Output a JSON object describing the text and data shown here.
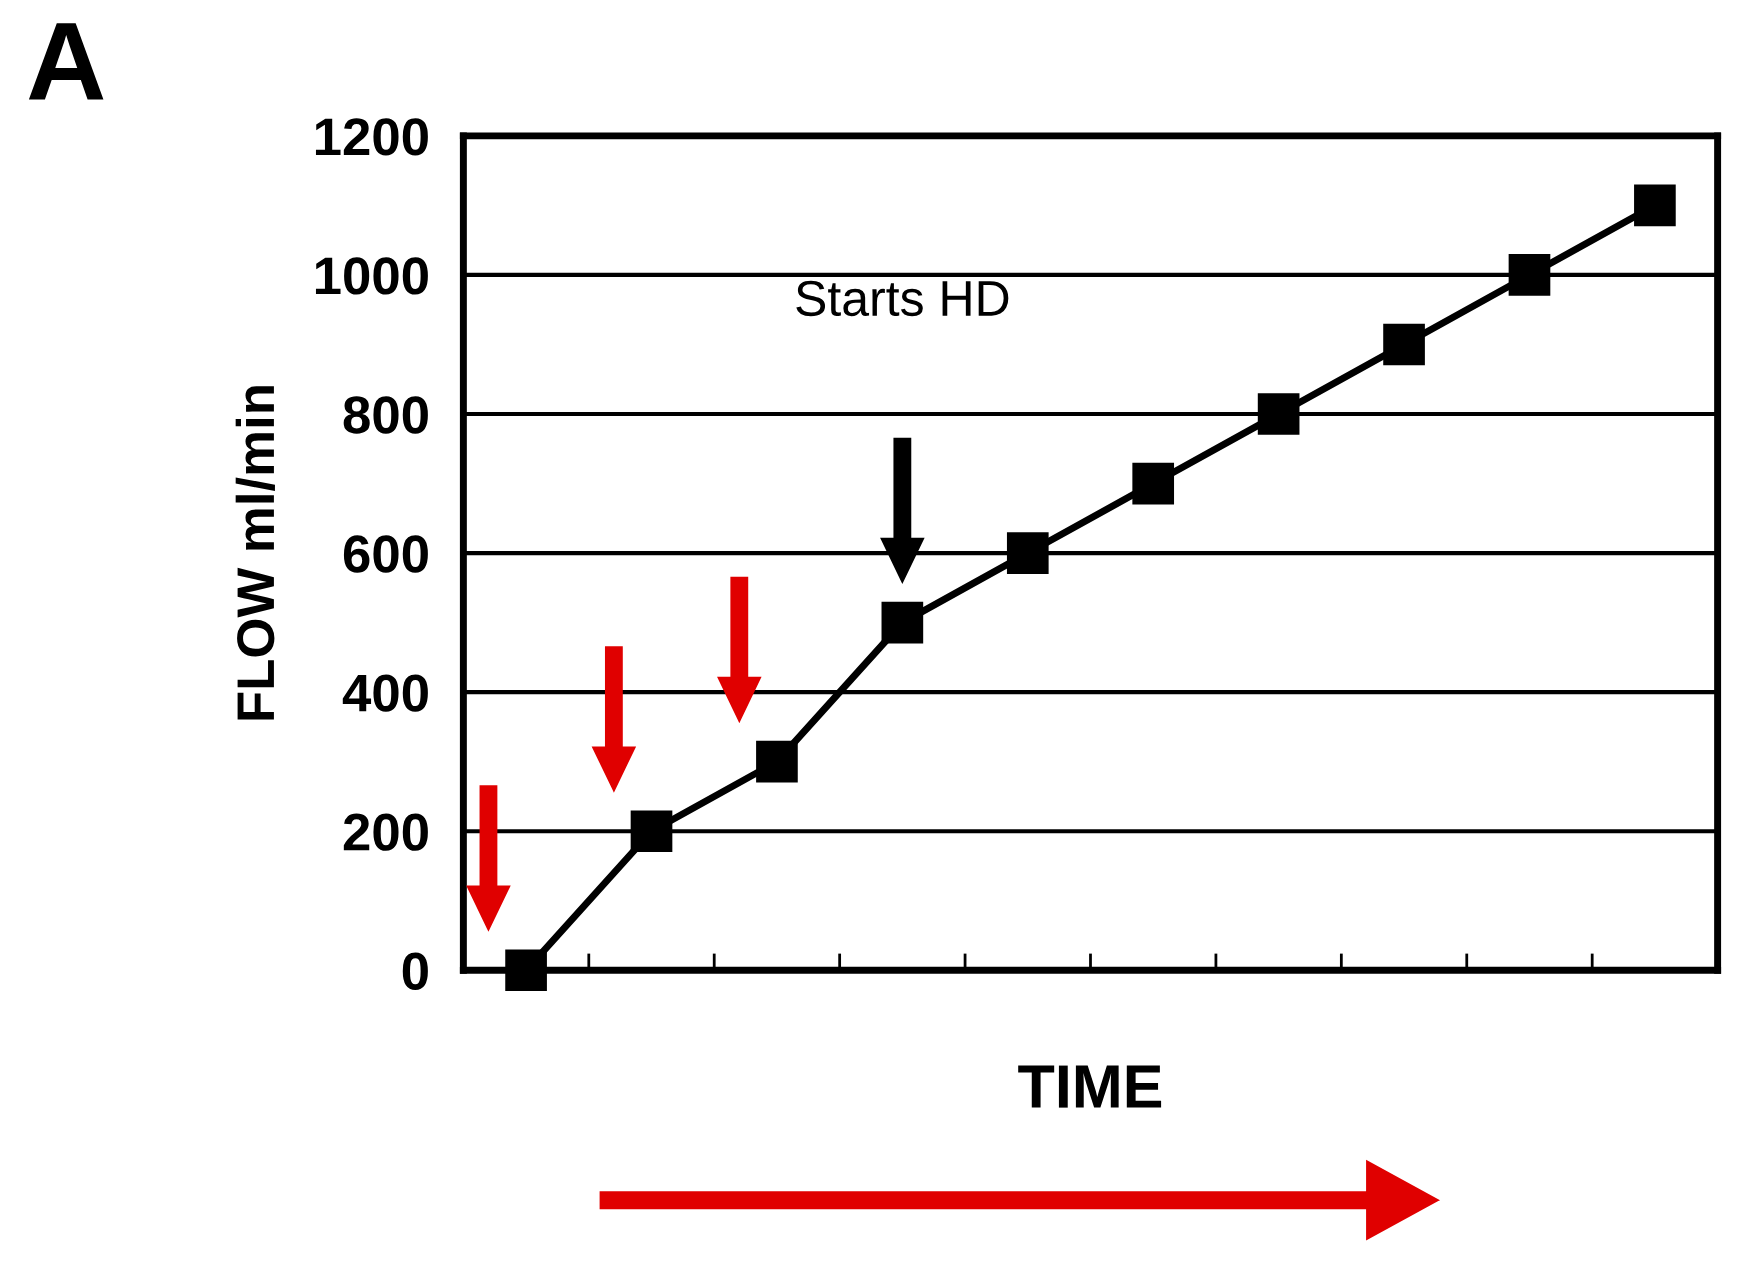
{
  "chart_data": {
    "type": "line",
    "xlabel": "TIME",
    "ylabel": "FLOW ml/min",
    "categories": [
      null,
      null,
      null,
      null,
      null,
      null,
      null,
      null,
      null,
      null
    ],
    "series": [
      {
        "color": "#000000",
        "values": [
          0,
          200,
          300,
          500,
          600,
          700,
          800,
          900,
          1000,
          1100
        ]
      }
    ],
    "ylim": [
      0,
      1200
    ],
    "yticks": [
      0,
      200,
      400,
      600,
      800,
      1000,
      1200
    ],
    "grid": "y",
    "marker": "square",
    "line_style": "solid",
    "annotations": [
      "A",
      "Starts HD"
    ]
  }
}
